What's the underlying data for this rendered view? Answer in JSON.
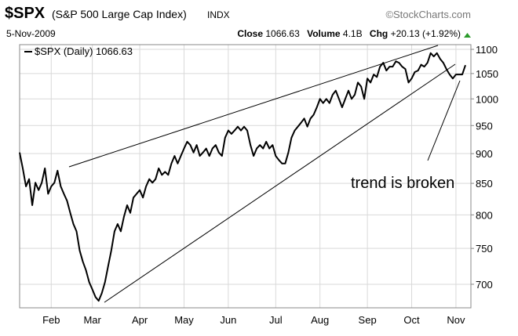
{
  "chart_data": {
    "type": "line",
    "header": {
      "symbol": "$SPX",
      "name": "(S&P 500 Large Cap Index)",
      "exchange": "INDX",
      "source": "©StockCharts.com",
      "date": "5-Nov-2009",
      "close_label": "Close",
      "close": "1066.63",
      "volume_label": "Volume",
      "volume": "4.1B",
      "chg_label": "Chg",
      "chg": "+20.13 (+1.92%)"
    },
    "annotation": "trend is broken",
    "categories": [
      null,
      null,
      null,
      null,
      null,
      null,
      null,
      null,
      null,
      null,
      "Feb",
      null,
      null,
      null,
      null,
      null,
      null,
      null,
      null,
      null,
      null,
      null,
      null,
      "Mar",
      null,
      null,
      null,
      null,
      null,
      null,
      null,
      null,
      null,
      null,
      null,
      null,
      null,
      null,
      "Apr",
      null,
      null,
      null,
      null,
      null,
      null,
      null,
      null,
      null,
      null,
      null,
      null,
      null,
      "May",
      null,
      null,
      null,
      null,
      null,
      null,
      null,
      null,
      null,
      null,
      null,
      null,
      null,
      "Jun",
      null,
      null,
      null,
      null,
      null,
      null,
      null,
      null,
      null,
      null,
      null,
      null,
      null,
      null,
      "Jul",
      null,
      null,
      null,
      null,
      null,
      null,
      null,
      null,
      null,
      null,
      null,
      null,
      null,
      "Aug",
      null,
      null,
      null,
      null,
      null,
      null,
      null,
      null,
      null,
      null,
      null,
      null,
      null,
      null,
      "Sep",
      null,
      null,
      null,
      null,
      null,
      null,
      null,
      null,
      null,
      null,
      null,
      null,
      null,
      "Oct",
      null,
      null,
      null,
      null,
      null,
      null,
      null,
      null,
      null,
      null,
      null,
      null,
      null,
      "Nov",
      null,
      null,
      null
    ],
    "series": [
      {
        "name": "$SPX (Daily) 1066.63",
        "color": "#000000",
        "values": [
          902,
          875,
          845,
          857,
          815,
          851,
          839,
          851,
          875,
          833,
          845,
          851,
          871,
          845,
          833,
          822,
          803,
          786,
          775,
          747,
          731,
          719,
          703,
          693,
          683,
          678,
          688,
          703,
          725,
          747,
          775,
          786,
          775,
          797,
          815,
          803,
          827,
          833,
          839,
          827,
          845,
          857,
          851,
          857,
          875,
          864,
          869,
          864,
          883,
          896,
          883,
          896,
          909,
          921,
          915,
          902,
          915,
          896,
          902,
          909,
          896,
          909,
          915,
          902,
          896,
          928,
          941,
          935,
          941,
          948,
          941,
          948,
          941,
          915,
          896,
          909,
          915,
          909,
          921,
          909,
          915,
          896,
          889,
          883,
          883,
          902,
          928,
          941,
          948,
          955,
          963,
          948,
          963,
          970,
          984,
          1000,
          992,
          1000,
          992,
          1008,
          1016,
          1000,
          984,
          1000,
          1016,
          1000,
          1008,
          1032,
          1024,
          1000,
          1040,
          1032,
          1048,
          1043,
          1064,
          1072,
          1056,
          1064,
          1064,
          1075,
          1072,
          1064,
          1059,
          1032,
          1040,
          1053,
          1056,
          1068,
          1064,
          1072,
          1092,
          1085,
          1092,
          1080,
          1072,
          1059,
          1048,
          1040,
          1048,
          1048,
          1048,
          1067
        ]
      }
    ],
    "ylim": [
      669,
      1110
    ],
    "yticks": [
      700,
      750,
      800,
      850,
      900,
      950,
      1000,
      1050,
      1100
    ],
    "log_y": true,
    "grid": true
  }
}
